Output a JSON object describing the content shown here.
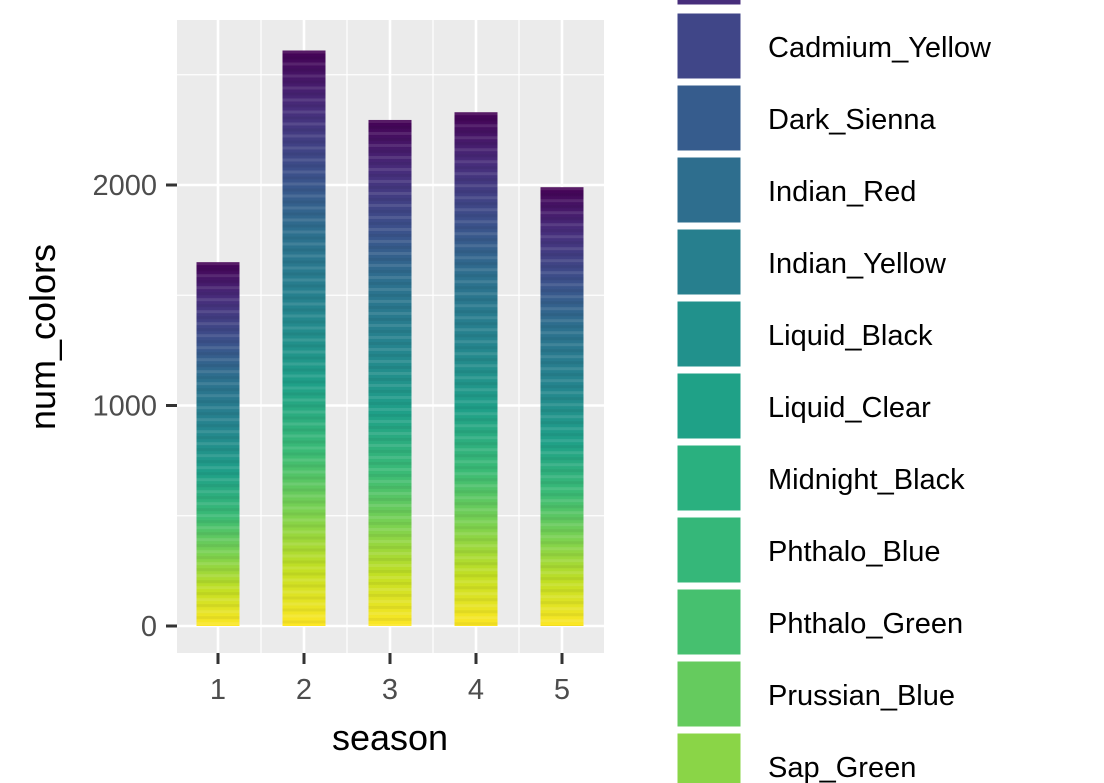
{
  "chart_data": {
    "type": "bar",
    "stacked": true,
    "xlabel": "season",
    "ylabel": "num_colors",
    "categories": [
      "1",
      "2",
      "3",
      "4",
      "5"
    ],
    "totals": [
      1650,
      2610,
      2295,
      2330,
      1990
    ],
    "y_ticks": [
      0,
      1000,
      2000
    ],
    "ylim": [
      -130,
      2750
    ],
    "grid": true,
    "panel_background": "#EBEBEB",
    "grid_color": "#FFFFFF",
    "color_scale": "viridis",
    "legend": {
      "position": "right",
      "entries": [
        {
          "label": "Cadmium_Yellow",
          "color": "#404688"
        },
        {
          "label": "Dark_Sienna",
          "color": "#365C8D"
        },
        {
          "label": "Indian_Red",
          "color": "#2E6E8E"
        },
        {
          "label": "Indian_Yellow",
          "color": "#277F8E"
        },
        {
          "label": "Liquid_Black",
          "color": "#21918C"
        },
        {
          "label": "Liquid_Clear",
          "color": "#1FA187"
        },
        {
          "label": "Midnight_Black",
          "color": "#2AB07F"
        },
        {
          "label": "Phthalo_Blue",
          "color": "#35B779"
        },
        {
          "label": "Phthalo_Green",
          "color": "#46C06F"
        },
        {
          "label": "Prussian_Blue",
          "color": "#65CB5E"
        },
        {
          "label": "Sap_Green",
          "color": "#8AD547"
        }
      ],
      "partial_top_color": "#472D7B"
    }
  }
}
